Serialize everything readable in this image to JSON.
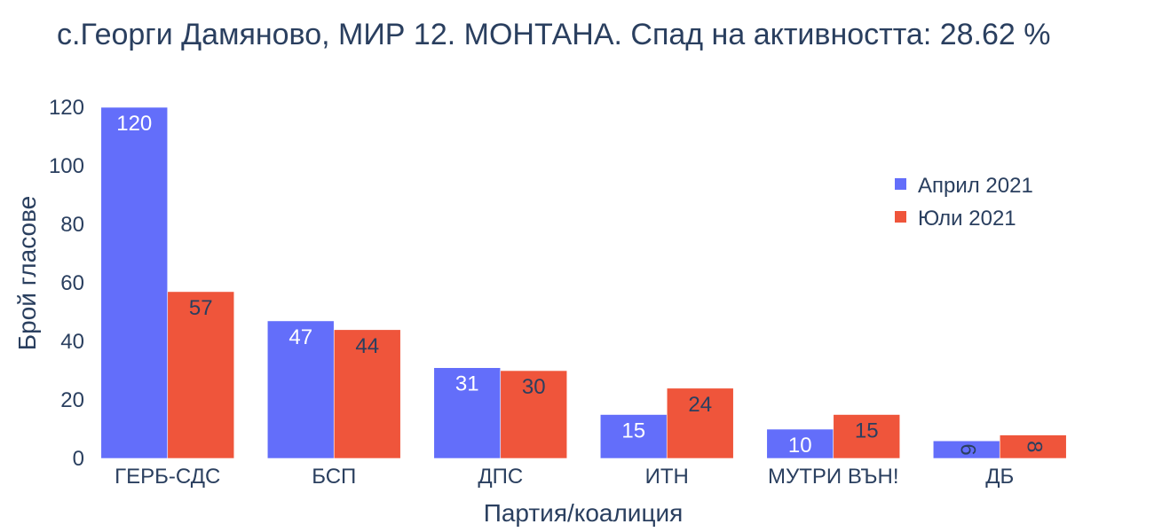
{
  "chart_data": {
    "type": "bar",
    "title": "с.Георги Дамяново, МИР 12. МОНТАНА. Спад на активността: 28.62 %",
    "xlabel": "Партия/коалиция",
    "ylabel": "Брой гласове",
    "categories": [
      "ГЕРБ-СДС",
      "БСП",
      "ДПС",
      "ИТН",
      "МУТРИ ВЪН!",
      "ДБ"
    ],
    "series": [
      {
        "name": "Април 2021",
        "color": "#636efa",
        "values": [
          120,
          47,
          31,
          15,
          10,
          6
        ]
      },
      {
        "name": "Юли 2021",
        "color": "#ef553b",
        "values": [
          57,
          44,
          30,
          24,
          15,
          8
        ]
      }
    ],
    "ylim": [
      0,
      120
    ],
    "yticks": [
      0,
      20,
      40,
      60,
      80,
      100,
      120
    ],
    "grid": false,
    "legend_position": "top-right"
  }
}
